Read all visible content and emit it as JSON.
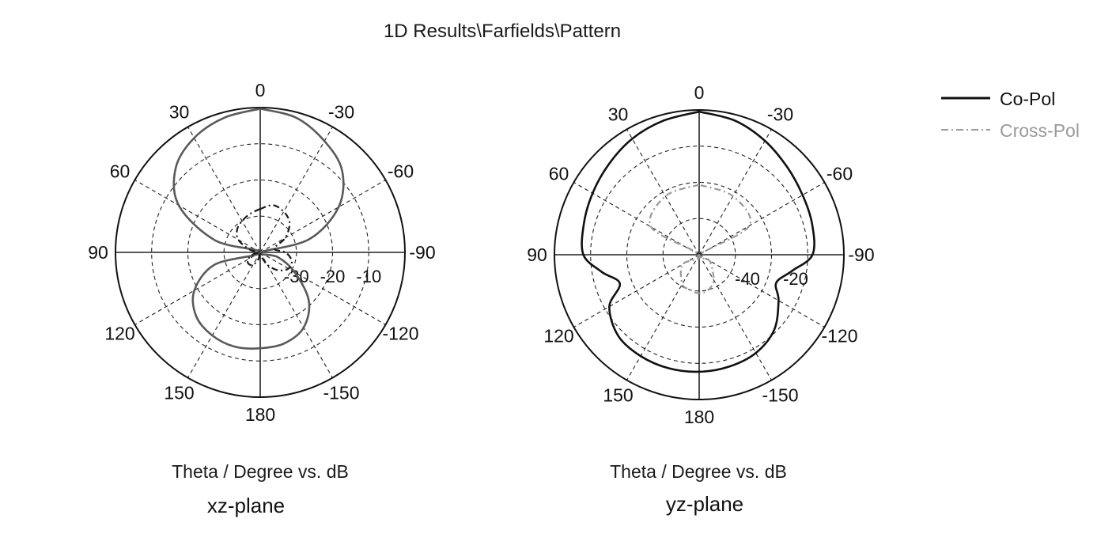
{
  "title": "1D Results\\Farfields\\Pattern",
  "legend": {
    "items": [
      {
        "label": "Co-Pol",
        "color": "#111111",
        "dash": "solid"
      },
      {
        "label": "Cross-Pol",
        "color": "#9a9a9a",
        "dash": "dashdot"
      }
    ]
  },
  "chart_data": [
    {
      "type": "polar",
      "plane_label": "xz-plane",
      "xlabel": "Theta / Degree vs. dB",
      "angle_ticks": [
        "0",
        "-30",
        "-60",
        "-90",
        "-120",
        "-150",
        "180",
        "150",
        "120",
        "90",
        "60",
        "30"
      ],
      "radial_ticks": [
        "-30",
        "-20",
        "-10"
      ],
      "rlim_db": [
        -40,
        0
      ],
      "grid": true,
      "series": [
        {
          "name": "Co-Pol",
          "color": "#5a5a5a",
          "dash": "solid",
          "theta_deg": [
            0,
            15,
            30,
            45,
            60,
            75,
            90,
            105,
            120,
            135,
            150,
            165,
            180,
            195,
            210,
            225,
            240,
            255,
            270,
            285,
            300,
            315,
            330,
            345,
            360
          ],
          "gain_db": [
            -0.3,
            -1.5,
            -3.5,
            -7,
            -14,
            -27,
            -40,
            -27,
            -19,
            -15,
            -13.5,
            -13,
            -13.5,
            -14,
            -16,
            -21,
            -29,
            -35,
            -40,
            -26,
            -15,
            -8,
            -4.5,
            -1.5,
            -0.3
          ]
        },
        {
          "name": "Cross-Pol",
          "color": "#1a1a1a",
          "dash": "dashdot",
          "theta_deg": [
            0,
            15,
            30,
            45,
            60,
            75,
            90,
            105,
            120,
            135,
            150,
            165,
            180,
            195,
            210,
            225,
            240,
            255,
            270,
            285,
            300,
            315,
            330,
            345,
            360
          ],
          "gain_db": [
            -28,
            -29,
            -30,
            -31,
            -33,
            -37,
            -40,
            -38,
            -36,
            -35.5,
            -36,
            -38,
            -40,
            -39,
            -36,
            -33,
            -31,
            -31,
            -33,
            -36,
            -32,
            -28.5,
            -27,
            -26.5,
            -28
          ]
        }
      ]
    },
    {
      "type": "polar",
      "plane_label": "yz-plane",
      "xlabel": "Theta / Degree vs. dB",
      "angle_ticks": [
        "0",
        "-30",
        "-60",
        "-90",
        "-120",
        "-150",
        "180",
        "150",
        "120",
        "90",
        "60",
        "30"
      ],
      "radial_ticks": [
        "-40",
        "-20"
      ],
      "rlim_db": [
        -60,
        0
      ],
      "grid": true,
      "series": [
        {
          "name": "Co-Pol",
          "color": "#111111",
          "dash": "solid",
          "theta_deg": [
            0,
            15,
            30,
            45,
            60,
            75,
            90,
            100,
            110,
            120,
            135,
            150,
            165,
            180,
            195,
            210,
            225,
            240,
            250,
            260,
            270,
            285,
            300,
            315,
            330,
            345,
            360
          ],
          "gain_db": [
            -0.7,
            -2.5,
            -4.5,
            -7,
            -9,
            -10.5,
            -12,
            -19,
            -25,
            -17,
            -12.5,
            -11.5,
            -11.3,
            -11.5,
            -12,
            -13,
            -16,
            -22,
            -26,
            -21,
            -13,
            -11.5,
            -10.5,
            -8.5,
            -5.5,
            -2.5,
            -0.7
          ]
        },
        {
          "name": "Cross-Pol",
          "color": "#9a9a9a",
          "dash": "dashdot",
          "theta_deg": [
            0,
            30,
            60,
            90,
            120,
            150,
            165,
            180,
            195,
            210,
            240,
            270,
            300,
            330,
            360
          ],
          "gain_db": [
            -31,
            -32,
            -37,
            -60,
            -52,
            -46,
            -45,
            -44,
            -45,
            -48,
            -55,
            -60,
            -36,
            -32,
            -31
          ]
        }
      ]
    }
  ]
}
